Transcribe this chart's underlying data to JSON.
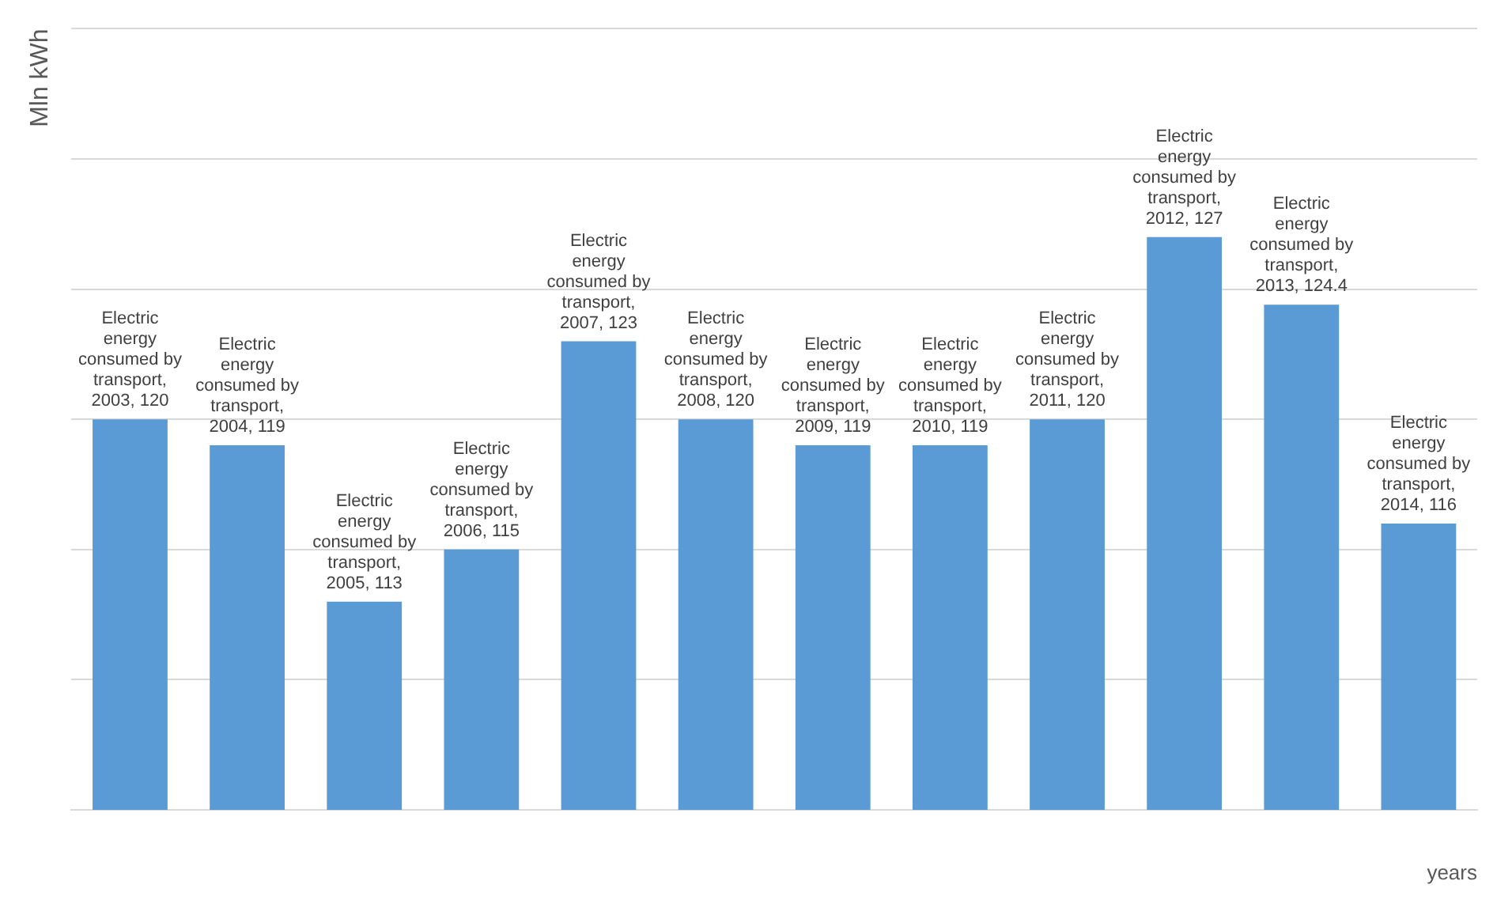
{
  "chart_data": {
    "type": "bar",
    "xlabel": "years",
    "ylabel": "Mln kWh",
    "categories": [
      null,
      null,
      null,
      null,
      null,
      null,
      null,
      null,
      null,
      null,
      null,
      null
    ],
    "series": [
      {
        "color": "#5b9bd5",
        "values": [
          120,
          119,
          113,
          115,
          123,
          120,
          119,
          119,
          120,
          127,
          124.4,
          116
        ],
        "value_labels": [
          "Electric energy consumed by transport, 2003, 120",
          "Electric energy consumed by transport, 2004, 119",
          "Electric energy consumed by transport, 2005, 113",
          "Electric energy consumed by transport, 2006, 115",
          "Electric energy consumed by transport, 2007, 123",
          "Electric energy consumed by transport, 2008, 120",
          "Electric energy consumed by transport, 2009, 119",
          "Electric energy consumed by transport, 2010, 119",
          "Electric energy consumed by transport, 2011, 120",
          "Electric energy consumed by transport, 2012, 127",
          "Electric energy consumed by transport, 2013, 124.4",
          "Electric energy consumed by transport, 2014, 116"
        ]
      }
    ],
    "ylim": [
      105,
      135
    ],
    "yticks": [
      {
        "value": 105,
        "label": null
      },
      {
        "value": 110,
        "label": null
      },
      {
        "value": 115,
        "label": null
      },
      {
        "value": 120,
        "label": null
      },
      {
        "value": 125,
        "label": null
      },
      {
        "value": 130,
        "label": null
      },
      {
        "value": 135,
        "label": null
      }
    ],
    "grid": "y",
    "legend": false
  }
}
